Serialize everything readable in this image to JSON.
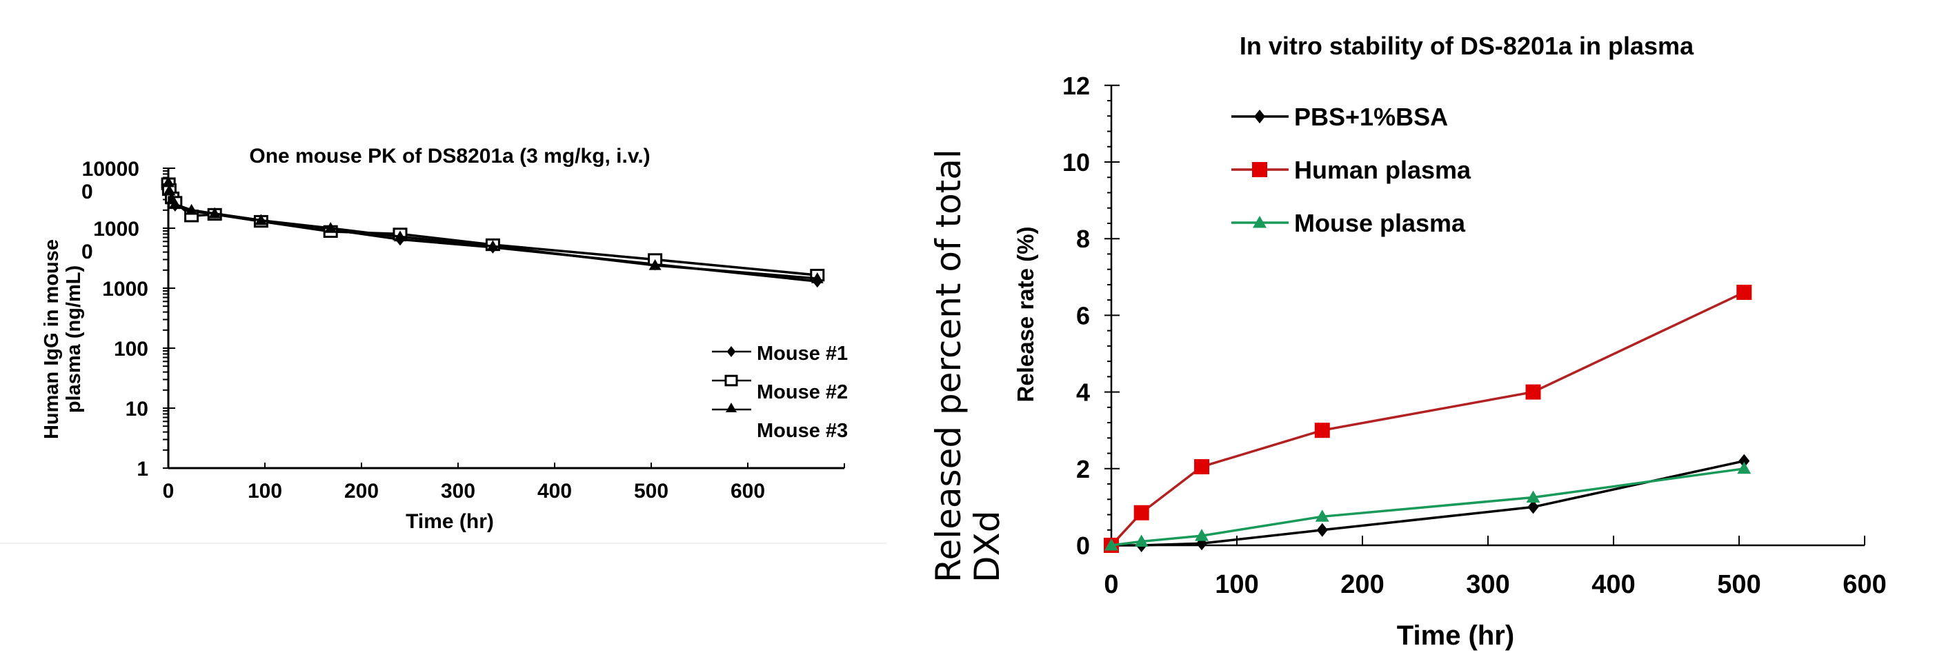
{
  "figure": {
    "side_label": {
      "line1": "Released percent of total",
      "line2": "DXd"
    }
  },
  "chart_data": [
    {
      "type": "line",
      "title": "One mouse PK of DS8201a (3 mg/kg, i.v.)",
      "xlabel": "Time (hr)",
      "ylabel_line1": "Human IgG in mouse",
      "ylabel_line2": "plasma (ng/mL)",
      "xlim": [
        0,
        700
      ],
      "ylim": [
        1,
        100000
      ],
      "yscale": "log",
      "x_ticks": [
        0,
        100,
        200,
        300,
        400,
        500,
        600
      ],
      "x_tick_labels": [
        "0",
        "100",
        "200",
        "300",
        "400",
        "500",
        "600"
      ],
      "y_ticks": [
        100000,
        10000,
        1000,
        100,
        10,
        1
      ],
      "y_tick_labels": [
        {
          "line1": "10000",
          "line2": "0"
        },
        {
          "line1": "1000",
          "line2": "0"
        },
        {
          "line1": "1000",
          "line2": ""
        },
        {
          "line1": "100",
          "line2": ""
        },
        {
          "line1": "10",
          "line2": ""
        },
        {
          "line1": "1",
          "line2": ""
        }
      ],
      "legend_position": "right",
      "x": [
        0.083,
        1,
        4,
        7,
        24,
        48,
        96,
        168,
        240,
        336,
        504,
        672
      ],
      "series": [
        {
          "name": "Mouse #1",
          "marker": "diamond",
          "color": "#000000",
          "values": [
            48000,
            40000,
            30000,
            24000,
            19000,
            17500,
            13500,
            9500,
            6500,
            4800,
            2500,
            1300
          ]
        },
        {
          "name": "Mouse #2",
          "marker": "square-open",
          "color": "#000000",
          "values": [
            55000,
            44000,
            32000,
            27000,
            16000,
            17000,
            13000,
            8800,
            8000,
            5300,
            3000,
            1650
          ]
        },
        {
          "name": "Mouse #3",
          "marker": "triangle",
          "color": "#000000",
          "values": [
            58000,
            42000,
            30000,
            25000,
            20000,
            17500,
            13500,
            10000,
            7200,
            5000,
            2400,
            1450
          ]
        }
      ]
    },
    {
      "type": "line",
      "title": "In vitro stability  of DS-8201a in plasma",
      "xlabel": "Time (hr)",
      "ylabel": "Release rate (%)",
      "xlim": [
        0,
        600
      ],
      "ylim": [
        0,
        12
      ],
      "x_ticks": [
        0,
        100,
        200,
        300,
        400,
        500,
        600
      ],
      "x_tick_labels": [
        "0",
        "100",
        "200",
        "300",
        "400",
        "500",
        "600"
      ],
      "y_ticks": [
        0,
        2,
        4,
        6,
        8,
        10,
        12
      ],
      "y_tick_labels": [
        "0",
        "2",
        "4",
        "6",
        "8",
        "10",
        "12"
      ],
      "legend_position": "top-left",
      "x": [
        0,
        24,
        72,
        168,
        336,
        504
      ],
      "series": [
        {
          "name": "PBS+1%BSA",
          "marker": "diamond",
          "color": "#000000",
          "values": [
            0,
            0.0,
            0.05,
            0.4,
            1.0,
            2.2
          ]
        },
        {
          "name": "Human plasma",
          "marker": "square",
          "color": "#e00000",
          "line_color": "#b22222",
          "values": [
            0,
            0.85,
            2.05,
            3.0,
            4.0,
            6.6
          ]
        },
        {
          "name": "Mouse plasma",
          "marker": "triangle",
          "color": "#1a9a5a",
          "values": [
            0,
            0.1,
            0.25,
            0.75,
            1.25,
            2.0
          ]
        }
      ]
    }
  ]
}
